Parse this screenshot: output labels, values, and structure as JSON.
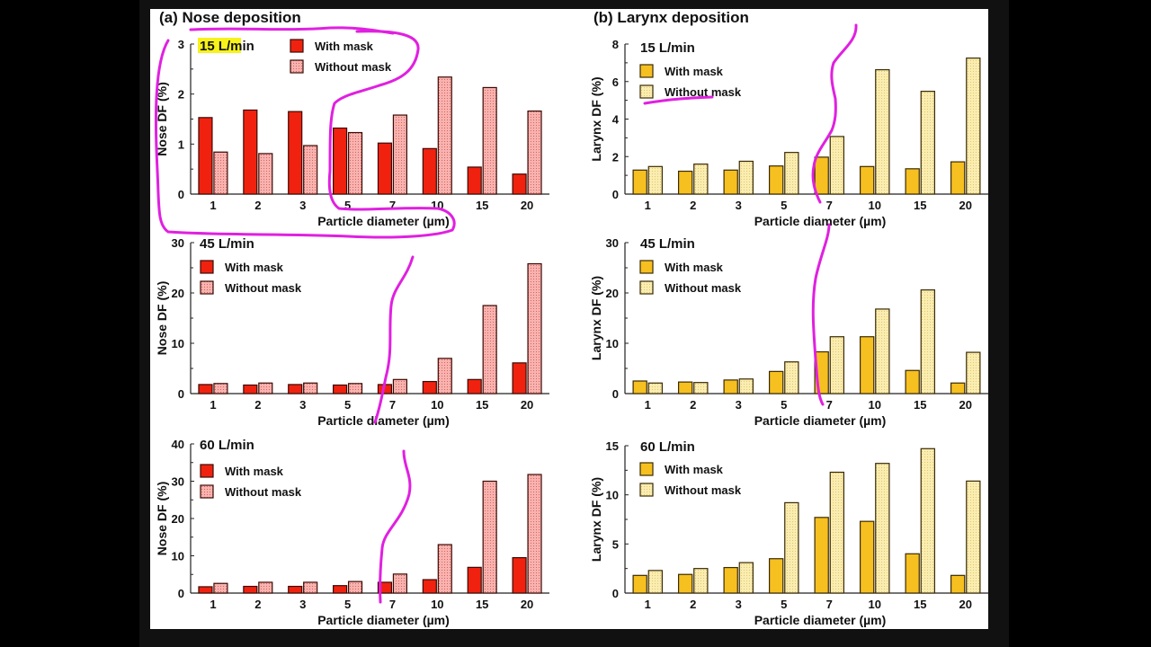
{
  "chart_data": [
    {
      "type": "bar",
      "panel": "(a) Nose deposition",
      "title": "15 L/min",
      "xlabel": "Particle diameter (µm)",
      "ylabel": "Nose DF (%)",
      "categories": [
        "1",
        "2",
        "3",
        "5",
        "7",
        "10",
        "15",
        "20"
      ],
      "ylim": [
        0,
        3
      ],
      "yticks": [
        0,
        1,
        2,
        3
      ],
      "series": [
        {
          "name": "With mask",
          "values": [
            1.53,
            1.68,
            1.65,
            1.32,
            1.02,
            0.91,
            0.54,
            0.4
          ]
        },
        {
          "name": "Without mask",
          "values": [
            0.84,
            0.81,
            0.97,
            1.23,
            1.58,
            2.34,
            2.13,
            1.66
          ]
        }
      ],
      "legend": "top-center",
      "title_highlight": "#f7f21a"
    },
    {
      "type": "bar",
      "panel": "",
      "title": "45 L/min",
      "xlabel": "Particle diameter (µm)",
      "ylabel": "Nose DF (%)",
      "categories": [
        "1",
        "2",
        "3",
        "5",
        "7",
        "10",
        "15",
        "20"
      ],
      "ylim": [
        0,
        30
      ],
      "yticks": [
        0,
        10,
        20,
        30
      ],
      "series": [
        {
          "name": "With mask",
          "values": [
            1.8,
            1.7,
            1.8,
            1.7,
            1.8,
            2.4,
            2.8,
            6.1
          ]
        },
        {
          "name": "Without mask",
          "values": [
            2.0,
            2.1,
            2.1,
            2.0,
            2.8,
            7.0,
            17.5,
            25.8
          ]
        }
      ],
      "legend": "top-left"
    },
    {
      "type": "bar",
      "panel": "",
      "title": "60 L/min",
      "xlabel": "Particle diameter (µm)",
      "ylabel": "Nose DF (%)",
      "categories": [
        "1",
        "2",
        "3",
        "5",
        "7",
        "10",
        "15",
        "20"
      ],
      "ylim": [
        0,
        40
      ],
      "yticks": [
        0,
        10,
        20,
        30,
        40
      ],
      "series": [
        {
          "name": "With mask",
          "values": [
            1.7,
            1.8,
            1.8,
            2.0,
            2.9,
            3.6,
            6.9,
            9.5
          ]
        },
        {
          "name": "Without mask",
          "values": [
            2.6,
            2.9,
            2.9,
            3.1,
            5.1,
            13.0,
            30.0,
            31.8
          ]
        }
      ],
      "legend": "top-left"
    },
    {
      "type": "bar",
      "panel": "(b) Larynx deposition",
      "title": "15 L/min",
      "xlabel": "Particle diameter (µm)",
      "ylabel": "Larynx DF (%)",
      "categories": [
        "1",
        "2",
        "3",
        "5",
        "7",
        "10",
        "15",
        "20"
      ],
      "ylim": [
        0,
        8
      ],
      "yticks": [
        0,
        2,
        4,
        6,
        8
      ],
      "series": [
        {
          "name": "With mask",
          "values": [
            1.28,
            1.22,
            1.28,
            1.5,
            1.97,
            1.47,
            1.35,
            1.72
          ]
        },
        {
          "name": "Without mask",
          "values": [
            1.47,
            1.6,
            1.75,
            2.22,
            3.07,
            6.63,
            5.48,
            7.25
          ]
        }
      ],
      "legend": "top-left"
    },
    {
      "type": "bar",
      "panel": "",
      "title": "45 L/min",
      "xlabel": "Particle diameter (µm)",
      "ylabel": "Larynx DF (%)",
      "categories": [
        "1",
        "2",
        "3",
        "5",
        "7",
        "10",
        "15",
        "20"
      ],
      "ylim": [
        0,
        30
      ],
      "yticks": [
        0,
        10,
        20,
        30
      ],
      "series": [
        {
          "name": "With mask",
          "values": [
            2.5,
            2.3,
            2.7,
            4.4,
            8.3,
            11.3,
            4.6,
            2.1
          ]
        },
        {
          "name": "Without mask",
          "values": [
            2.1,
            2.2,
            2.9,
            6.3,
            11.3,
            16.8,
            20.6,
            8.2
          ]
        }
      ],
      "legend": "top-left"
    },
    {
      "type": "bar",
      "panel": "",
      "title": "60 L/min",
      "xlabel": "Particle diameter (µm)",
      "ylabel": "Larynx DF (%)",
      "categories": [
        "1",
        "2",
        "3",
        "5",
        "7",
        "10",
        "15",
        "20"
      ],
      "ylim": [
        0,
        15
      ],
      "yticks": [
        0,
        5,
        10,
        15
      ],
      "series": [
        {
          "name": "With mask",
          "values": [
            1.8,
            1.9,
            2.6,
            3.5,
            7.7,
            7.3,
            4.0,
            1.8
          ]
        },
        {
          "name": "Without mask",
          "values": [
            2.3,
            2.5,
            3.1,
            9.2,
            12.3,
            13.2,
            14.7,
            11.4
          ]
        }
      ],
      "legend": "top-left"
    }
  ],
  "colors": {
    "nose_with": "#f0220f",
    "nose_without": "#f5a3a0",
    "larynx_with": "#f6c020",
    "larynx_without": "#f8e8a0",
    "annotation": "#e020e0"
  }
}
